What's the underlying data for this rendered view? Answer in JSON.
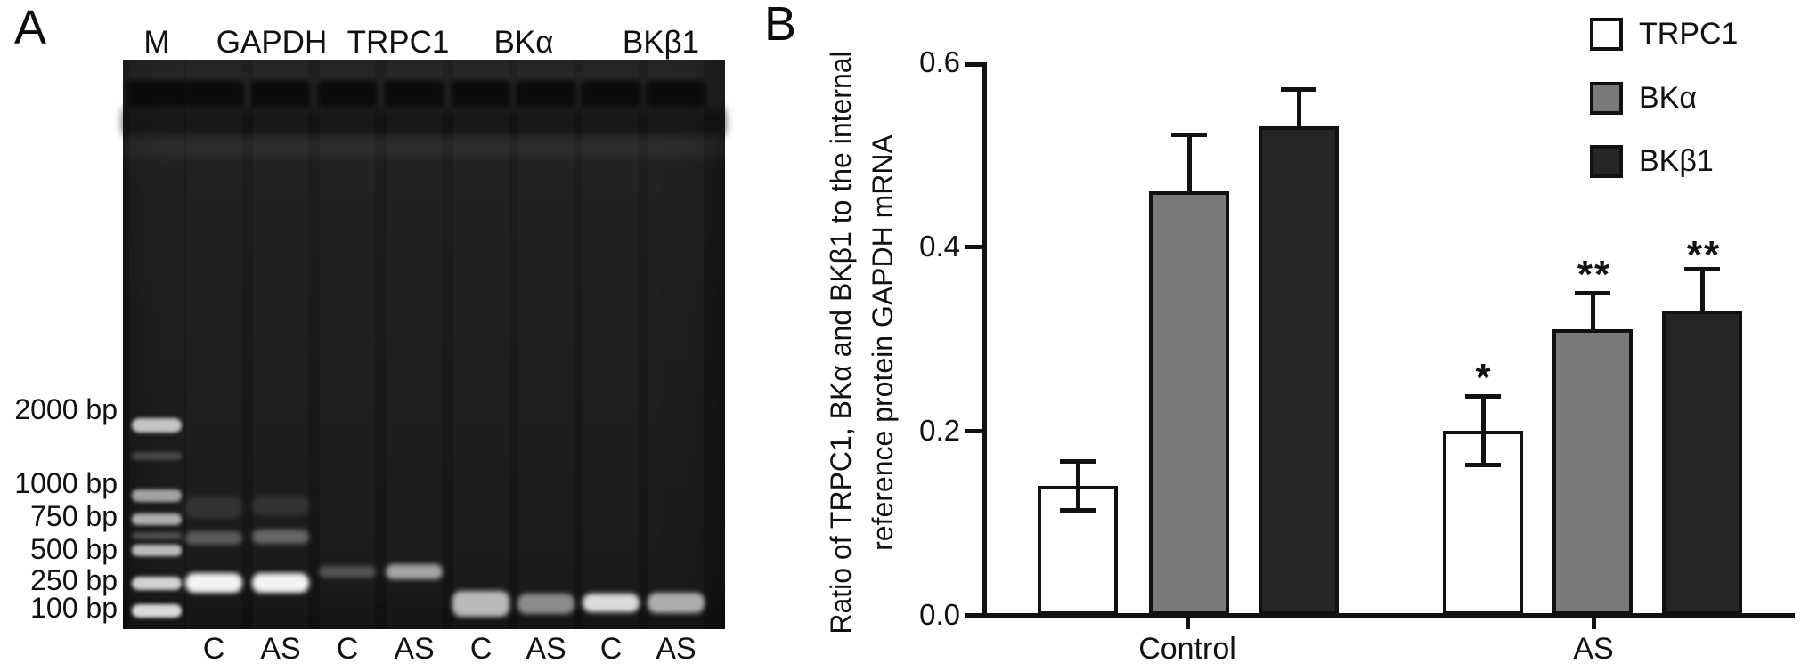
{
  "panel_a": {
    "label": "A",
    "lane_headers": [
      "M",
      "GAPDH",
      "TRPC1",
      "BKα",
      "BKβ1"
    ],
    "bp_labels": [
      "2000 bp",
      "1000 bp",
      "750 bp",
      "500 bp",
      "250 bp",
      "100 bp"
    ],
    "lane_labels": [
      "C",
      "AS",
      "C",
      "AS",
      "C",
      "AS",
      "C",
      "AS"
    ]
  },
  "panel_b": {
    "label": "B",
    "y_axis_title_line1": "Ratio of TRPC1, BKα and BKβ1 to the internal",
    "y_axis_title_line2": "reference protein GAPDH mRNA",
    "y_tick_labels": [
      "0.6",
      "0.4",
      "0.2",
      "0.0"
    ],
    "group_labels": [
      "Control",
      "AS"
    ],
    "legend": [
      {
        "label": "TRPC1",
        "color": "#ffffff"
      },
      {
        "label": "BKα",
        "color": "#7a7a7a"
      },
      {
        "label": "BKβ1",
        "color": "#262626"
      }
    ]
  },
  "chart_data": {
    "type": "bar",
    "categories": [
      "Control",
      "AS"
    ],
    "series": [
      {
        "name": "TRPC1",
        "color": "#ffffff",
        "values": [
          0.14,
          0.2
        ],
        "errors": [
          0.027,
          0.038
        ]
      },
      {
        "name": "BKα",
        "color": "#7a7a7a",
        "values": [
          0.46,
          0.31
        ],
        "errors": [
          0.062,
          0.04
        ]
      },
      {
        "name": "BKβ1",
        "color": "#262626",
        "values": [
          0.53,
          0.33
        ],
        "errors": [
          0.041,
          0.046
        ]
      }
    ],
    "title": "",
    "xlabel": "",
    "ylabel": "Ratio of TRPC1, BKα and BKβ1 to the internal reference protein GAPDH mRNA",
    "ylim": [
      0.0,
      0.6
    ],
    "yticks": [
      0.0,
      0.2,
      0.4,
      0.6
    ],
    "grid": false,
    "legend_position": "top-right",
    "annotations": [
      {
        "group": "AS",
        "series": "TRPC1",
        "text": "*"
      },
      {
        "group": "AS",
        "series": "BKα",
        "text": "**"
      },
      {
        "group": "AS",
        "series": "BKβ1",
        "text": "**"
      }
    ]
  }
}
